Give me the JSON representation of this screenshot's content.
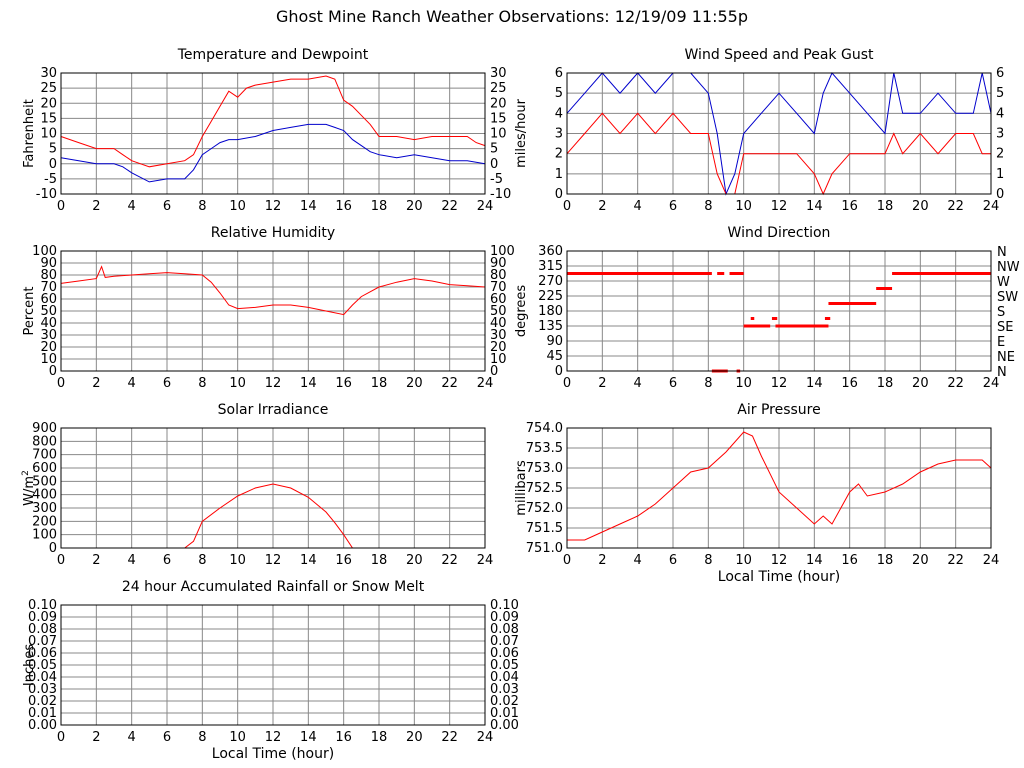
{
  "page": {
    "title": "Ghost Mine Ranch Weather Observations: 12/19/09 11:55p"
  },
  "colors": {
    "red": "#ff0000",
    "blue": "#0000cc",
    "grid": "#888888",
    "frame": "#000000"
  },
  "chart_data": [
    {
      "id": "temperature",
      "type": "line",
      "title": "Temperature and Dewpoint",
      "xlabel": "",
      "ylabel": "Fahrenheit",
      "xlim": [
        0,
        24
      ],
      "ylim": [
        -10,
        30
      ],
      "xticks": [
        0,
        2,
        4,
        6,
        8,
        10,
        12,
        14,
        16,
        18,
        20,
        22,
        24
      ],
      "yticks": [
        -10,
        -5,
        0,
        5,
        10,
        15,
        20,
        25,
        30
      ],
      "right_axis": true,
      "series": [
        {
          "color": "red",
          "x": [
            0,
            1,
            2,
            3,
            3.5,
            4,
            5,
            6,
            7,
            7.5,
            8,
            8.5,
            9,
            9.5,
            10,
            10.5,
            11,
            12,
            13,
            14,
            15,
            15.5,
            16,
            16.5,
            17,
            17.5,
            18,
            19,
            20,
            21,
            22,
            23,
            23.5,
            24
          ],
          "y": [
            9,
            7,
            5,
            5,
            3,
            1,
            -1,
            0,
            1,
            3,
            9,
            14,
            19,
            24,
            22,
            25,
            26,
            27,
            28,
            28,
            29,
            28,
            21,
            19,
            16,
            13,
            9,
            9,
            8,
            9,
            9,
            9,
            7,
            6
          ]
        },
        {
          "color": "blue",
          "x": [
            0,
            1,
            2,
            3,
            3.5,
            4,
            5,
            6,
            7,
            7.5,
            8,
            8.5,
            9,
            9.5,
            10,
            11,
            12,
            13,
            14,
            15,
            15.5,
            16,
            16.5,
            17,
            17.5,
            18,
            19,
            20,
            21,
            22,
            23,
            24
          ],
          "y": [
            2,
            1,
            0,
            0,
            -1,
            -3,
            -6,
            -5,
            -5,
            -2,
            3,
            5,
            7,
            8,
            8,
            9,
            11,
            12,
            13,
            13,
            12,
            11,
            8,
            6,
            4,
            3,
            2,
            3,
            2,
            1,
            1,
            0
          ]
        }
      ]
    },
    {
      "id": "wind-speed",
      "type": "line",
      "title": "Wind Speed and Peak Gust",
      "xlabel": "",
      "ylabel": "miles/hour",
      "xlim": [
        0,
        24
      ],
      "ylim": [
        0,
        6
      ],
      "xticks": [
        0,
        2,
        4,
        6,
        8,
        10,
        12,
        14,
        16,
        18,
        20,
        22,
        24
      ],
      "yticks": [
        0,
        1,
        2,
        3,
        4,
        5,
        6
      ],
      "right_axis": true,
      "series": [
        {
          "color": "blue",
          "x": [
            0,
            1,
            2,
            3,
            4,
            5,
            6,
            7,
            8,
            8.5,
            9,
            9.5,
            10,
            11,
            12,
            13,
            14,
            14.5,
            15,
            16,
            17,
            18,
            18.5,
            19,
            20,
            21,
            22,
            23,
            23.5,
            24
          ],
          "y": [
            4,
            5,
            6,
            5,
            6,
            5,
            6,
            6,
            5,
            3,
            0,
            1,
            3,
            4,
            5,
            4,
            3,
            5,
            6,
            5,
            4,
            3,
            6,
            4,
            4,
            5,
            4,
            4,
            6,
            4
          ]
        },
        {
          "color": "red",
          "x": [
            0,
            1,
            2,
            3,
            4,
            5,
            6,
            7,
            8,
            8.5,
            9,
            9.5,
            10,
            11,
            12,
            13,
            14,
            14.5,
            15,
            16,
            17,
            18,
            18.5,
            19,
            20,
            21,
            22,
            23,
            23.5,
            24
          ],
          "y": [
            2,
            3,
            4,
            3,
            4,
            3,
            4,
            3,
            3,
            1,
            0,
            0,
            2,
            2,
            2,
            2,
            1,
            0,
            1,
            2,
            2,
            2,
            3,
            2,
            3,
            2,
            3,
            3,
            2,
            2
          ]
        }
      ]
    },
    {
      "id": "humidity",
      "type": "line",
      "title": "Relative Humidity",
      "xlabel": "",
      "ylabel": "Percent",
      "xlim": [
        0,
        24
      ],
      "ylim": [
        0,
        100
      ],
      "xticks": [
        0,
        2,
        4,
        6,
        8,
        10,
        12,
        14,
        16,
        18,
        20,
        22,
        24
      ],
      "yticks": [
        0,
        10,
        20,
        30,
        40,
        50,
        60,
        70,
        80,
        90,
        100
      ],
      "right_axis": true,
      "series": [
        {
          "color": "red",
          "x": [
            0,
            1,
            2,
            2.3,
            2.5,
            3,
            4,
            5,
            6,
            7,
            8,
            8.5,
            9,
            9.5,
            10,
            11,
            12,
            13,
            14,
            15,
            16,
            16.5,
            17,
            18,
            19,
            20,
            21,
            22,
            23,
            24
          ],
          "y": [
            73,
            75,
            77,
            87,
            78,
            79,
            80,
            81,
            82,
            81,
            80,
            74,
            65,
            55,
            52,
            53,
            55,
            55,
            53,
            50,
            47,
            55,
            62,
            70,
            74,
            77,
            75,
            72,
            71,
            70
          ]
        }
      ]
    },
    {
      "id": "wind-direction",
      "type": "scatter",
      "title": "Wind Direction",
      "xlabel": "",
      "ylabel": "degrees",
      "xlim": [
        0,
        24
      ],
      "ylim": [
        0,
        360
      ],
      "xticks": [
        0,
        2,
        4,
        6,
        8,
        10,
        12,
        14,
        16,
        18,
        20,
        22,
        24
      ],
      "yticks": [
        0,
        45,
        90,
        135,
        180,
        225,
        270,
        315,
        360
      ],
      "right_labels": [
        "N",
        "NE",
        "E",
        "SE",
        "S",
        "SW",
        "W",
        "NW",
        "N"
      ],
      "segments": [
        {
          "x0": 0,
          "x1": 8.2,
          "y": 292.5
        },
        {
          "x0": 8.5,
          "x1": 8.9,
          "y": 292.5
        },
        {
          "x0": 9.2,
          "x1": 10,
          "y": 292.5
        },
        {
          "x0": 8.2,
          "x1": 9.1,
          "y": 0
        },
        {
          "x0": 9.6,
          "x1": 9.8,
          "y": 0
        },
        {
          "x0": 10,
          "x1": 11.5,
          "y": 135
        },
        {
          "x0": 10.4,
          "x1": 10.6,
          "y": 157.5
        },
        {
          "x0": 11.6,
          "x1": 11.9,
          "y": 157.5
        },
        {
          "x0": 11.8,
          "x1": 14.8,
          "y": 135
        },
        {
          "x0": 14.6,
          "x1": 14.9,
          "y": 157.5
        },
        {
          "x0": 14.8,
          "x1": 17.5,
          "y": 202.5
        },
        {
          "x0": 17.5,
          "x1": 18.4,
          "y": 247.5
        },
        {
          "x0": 18.4,
          "x1": 24,
          "y": 292.5
        }
      ]
    },
    {
      "id": "solar",
      "type": "area",
      "title": "Solar Irradiance",
      "xlabel": "",
      "ylabel": "W/m",
      "ylabel_sup": "2",
      "xlim": [
        0,
        24
      ],
      "ylim": [
        0,
        900
      ],
      "xticks": [
        0,
        2,
        4,
        6,
        8,
        10,
        12,
        14,
        16,
        18,
        20,
        22,
        24
      ],
      "yticks": [
        0,
        100,
        200,
        300,
        400,
        500,
        600,
        700,
        800,
        900
      ],
      "right_axis": false,
      "series": [
        {
          "color": "red",
          "x": [
            0,
            7,
            7.5,
            8,
            9,
            10,
            11,
            12,
            13,
            14,
            15,
            15.5,
            16,
            16.5,
            24
          ],
          "y": [
            0,
            0,
            50,
            200,
            300,
            390,
            450,
            480,
            450,
            380,
            270,
            190,
            100,
            0,
            0
          ]
        }
      ]
    },
    {
      "id": "pressure",
      "type": "line",
      "title": "Air Pressure",
      "xlabel": "Local Time (hour)",
      "ylabel": "millibars",
      "xlim": [
        0,
        24
      ],
      "ylim": [
        751,
        754
      ],
      "xticks": [
        0,
        2,
        4,
        6,
        8,
        10,
        12,
        14,
        16,
        18,
        20,
        22,
        24
      ],
      "yticks": [
        751.0,
        751.5,
        752.0,
        752.5,
        753.0,
        753.5,
        754.0
      ],
      "ytick_labels": [
        "751.0",
        "751.5",
        "752.0",
        "752.5",
        "753.0",
        "753.5",
        "754.0"
      ],
      "right_axis": false,
      "series": [
        {
          "color": "red",
          "x": [
            0,
            1,
            2,
            3,
            4,
            5,
            6,
            7,
            8,
            9,
            10,
            10.5,
            11,
            12,
            13,
            14,
            14.5,
            15,
            16,
            16.5,
            17,
            18,
            19,
            20,
            21,
            22,
            23,
            23.5,
            24
          ],
          "y": [
            751.2,
            751.2,
            751.4,
            751.6,
            751.8,
            752.1,
            752.5,
            752.9,
            753.0,
            753.4,
            753.9,
            753.8,
            753.3,
            752.4,
            752.0,
            751.6,
            751.8,
            751.6,
            752.4,
            752.6,
            752.3,
            752.4,
            752.6,
            752.9,
            753.1,
            753.2,
            753.2,
            753.2,
            753.0
          ]
        }
      ]
    },
    {
      "id": "rainfall",
      "type": "line",
      "title": "24 hour Accumulated Rainfall or Snow Melt",
      "xlabel": "Local Time (hour)",
      "ylabel": "Inches",
      "xlim": [
        0,
        24
      ],
      "ylim": [
        0,
        0.1
      ],
      "xticks": [
        0,
        2,
        4,
        6,
        8,
        10,
        12,
        14,
        16,
        18,
        20,
        22,
        24
      ],
      "yticks": [
        0,
        0.01,
        0.02,
        0.03,
        0.04,
        0.05,
        0.06,
        0.07,
        0.08,
        0.09,
        0.1
      ],
      "ytick_labels": [
        "0.00",
        "0.01",
        "0.02",
        "0.03",
        "0.04",
        "0.05",
        "0.06",
        "0.07",
        "0.08",
        "0.09",
        "0.10"
      ],
      "right_axis": true,
      "series": [
        {
          "color": "red",
          "x": [
            0,
            24
          ],
          "y": [
            0,
            0
          ]
        }
      ]
    }
  ]
}
